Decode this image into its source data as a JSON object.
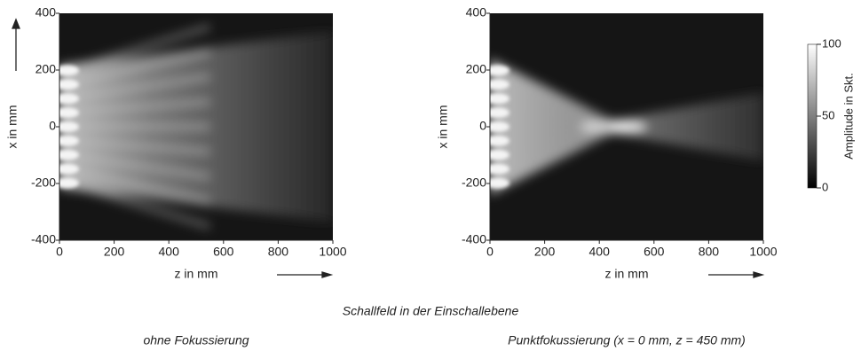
{
  "chart_data": [
    {
      "type": "heatmap",
      "subtitle": "ohne Fokussierung",
      "xlabel": "z in mm",
      "ylabel": "x in mm",
      "xlim": [
        0,
        1000
      ],
      "ylim": [
        -400,
        400
      ],
      "xticks": [
        0,
        200,
        400,
        600,
        800,
        1000
      ],
      "yticks": [
        -400,
        -200,
        0,
        200,
        400
      ]
    },
    {
      "type": "heatmap",
      "subtitle": "Punktfokussierung (x = 0 mm, z = 450 mm)",
      "xlabel": "z in mm",
      "ylabel": "x in mm",
      "xlim": [
        0,
        1000
      ],
      "ylim": [
        -400,
        400
      ],
      "xticks": [
        0,
        200,
        400,
        600,
        800,
        1000
      ],
      "yticks": [
        -400,
        -200,
        0,
        200,
        400
      ],
      "focus": [
        450,
        0
      ],
      "colorbar": {
        "label": "Amplitude in Skt.",
        "lim": [
          0,
          100
        ],
        "ticks": [
          0,
          50,
          100
        ]
      }
    }
  ],
  "caption": "Schallfeld in der Einschallebene"
}
